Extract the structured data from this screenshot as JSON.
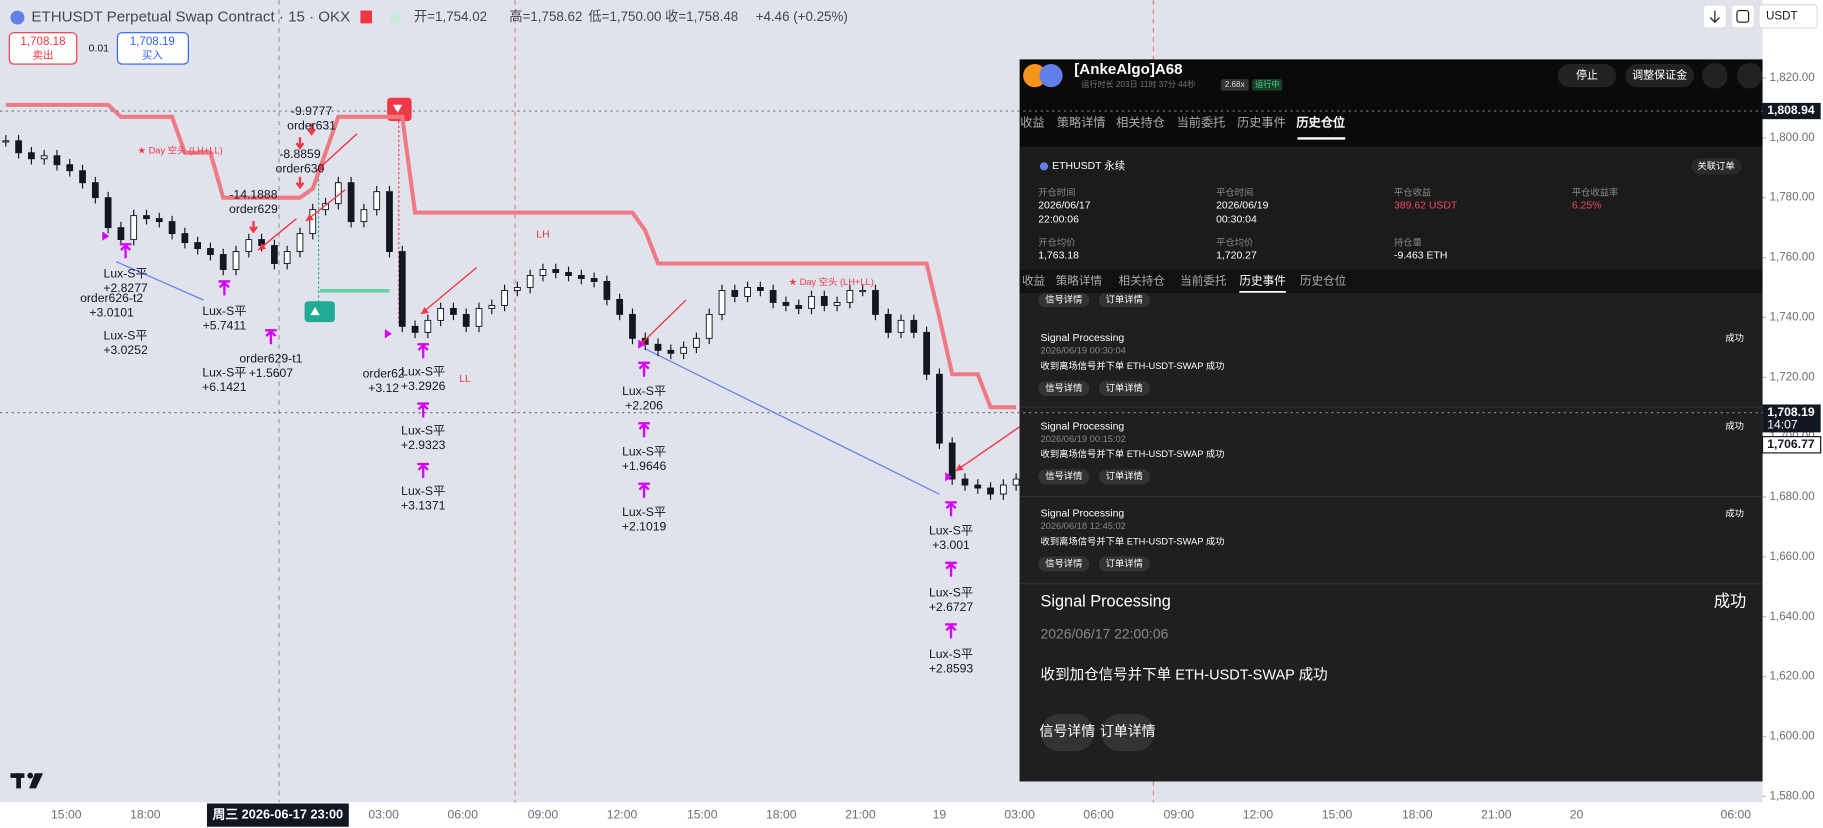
{
  "header": {
    "title": "ETHUSDT Perpetual Swap Contract · 15 · OKX",
    "ohlc": [
      "开=1,754.02",
      "高=1,758.62",
      "低=1,750.00",
      "收=1,758.48"
    ],
    "change": "+4.46 (+0.25%)",
    "currency": "USDT"
  },
  "order_box": {
    "sell_price": "1,708.18",
    "sell": "卖出",
    "qty": "0.01",
    "buy_price": "1,708.19",
    "buy": "买入"
  },
  "chart": {
    "ylim": [
      1578,
      1846
    ],
    "yticks": [
      {
        "value": 1820,
        "label": "1,820.00"
      },
      {
        "value": 1800,
        "label": "1,800.00"
      },
      {
        "value": 1780,
        "label": "1,780.00"
      },
      {
        "value": 1760,
        "label": "1,760.00"
      },
      {
        "value": 1740,
        "label": "1,740.00"
      },
      {
        "value": 1720,
        "label": "1,720.00"
      },
      {
        "value": 1700,
        "label": "1,700.00"
      },
      {
        "value": 1680,
        "label": "1,680.00"
      },
      {
        "value": 1660,
        "label": "1,660.00"
      },
      {
        "value": 1640,
        "label": "1,640.00"
      },
      {
        "value": 1620,
        "label": "1,620.00"
      },
      {
        "value": 1600,
        "label": "1,600.00"
      },
      {
        "value": 1580,
        "label": "1,580.00"
      }
    ],
    "closes": [
      1799,
      1795,
      1793,
      1794,
      1791,
      1789,
      1785,
      1780,
      1770,
      1766,
      1774,
      1773,
      1772,
      1768,
      1765,
      1763,
      1761,
      1756,
      1762,
      1766,
      1764,
      1758,
      1762,
      1768,
      1776,
      1778,
      1785,
      1772,
      1776,
      1782,
      1762,
      1737,
      1735,
      1739,
      1743,
      1741,
      1737,
      1743,
      1744,
      1749,
      1750,
      1754,
      1756,
      1755,
      1754,
      1753,
      1752,
      1746,
      1741,
      1733,
      1731,
      1729,
      1728,
      1730,
      1733,
      1741,
      1749,
      1747,
      1750,
      1749,
      1745,
      1744,
      1743,
      1747,
      1744,
      1745,
      1749,
      1749,
      1741,
      1735,
      1739,
      1735,
      1721,
      1698,
      1686,
      1684,
      1683,
      1681,
      1684,
      1686
    ],
    "stop_line": [
      1811,
      1811,
      1811,
      1811,
      1811,
      1811,
      1811,
      1811,
      1811,
      1807,
      1807,
      1807,
      1807,
      1807,
      1795,
      1795,
      1795,
      1780,
      1780,
      1780,
      1780,
      1780,
      1780,
      1780,
      1783,
      1795,
      1807,
      1807,
      1807,
      1807,
      1807,
      1807,
      1775,
      1775,
      1775,
      1775,
      1775,
      1775,
      1775,
      1775,
      1775,
      1775,
      1775,
      1775,
      1775,
      1775,
      1775,
      1775,
      1775,
      1775,
      1769,
      1758,
      1758,
      1758,
      1758,
      1758,
      1758,
      1758,
      1758,
      1758,
      1758,
      1758,
      1758,
      1758,
      1758,
      1758,
      1758,
      1758,
      1758,
      1758,
      1758,
      1758,
      1758,
      1740,
      1721,
      1721,
      1721,
      1710,
      1710,
      1710
    ],
    "price_labels": [
      {
        "value": 1808.94,
        "label": "1,808.94"
      },
      {
        "value": 1708.19,
        "label": "1,708.19"
      },
      {
        "value": 1706.77,
        "label": "1,706.77"
      }
    ],
    "countdown": "14:07",
    "crosshair_time": "周三 2026-06-17   23:00",
    "xticks": [
      "15:00",
      "18:00",
      "03:00",
      "06:00",
      "09:00",
      "12:00",
      "15:00",
      "18:00",
      "21:00",
      "19",
      "03:00",
      "06:00",
      "09:00",
      "12:00",
      "15:00",
      "18:00",
      "21:00",
      "20",
      "06:00"
    ],
    "annotations": [
      [
        "-9.9777",
        "order631"
      ],
      [
        "-8.8859",
        "order630"
      ],
      [
        "-14.1888",
        "order629"
      ],
      [
        "Lux-S平",
        "+2.8277"
      ],
      [
        "order626-t2",
        "+3.0101"
      ],
      [
        "Lux-S平",
        "+3.0252"
      ],
      [
        "Lux-S平",
        "+5.7411"
      ],
      [
        "order629-t1",
        "+1.5607"
      ],
      [
        "Lux-S平",
        "+6.1421"
      ],
      [
        "order62",
        "+3.12"
      ],
      [
        "Lux-S平",
        "+3.2926"
      ],
      [
        "Lux-S平",
        "+2.9323"
      ],
      [
        "Lux-S平",
        "+3.1371"
      ],
      [
        "Lux-S平",
        "+2.206"
      ],
      [
        "Lux-S平",
        "+1.9646"
      ],
      [
        "Lux-S平",
        "+2.1019"
      ],
      [
        "Lux-S平",
        "+3.001"
      ],
      [
        "Lux-S平",
        "+2.6727"
      ],
      [
        "Lux-S平",
        "+2.8593"
      ]
    ],
    "signals": [
      "LH",
      "LL",
      "★ Day 空头 (LH+LL)",
      "★ Day 空头 (LH+LL)"
    ]
  },
  "panel": {
    "title": "[AnkeAlgo]A68",
    "runtime": "运行时长 203日 11时 37分 44秒",
    "leverage": "2.68x",
    "status": "运行中",
    "buttons": [
      "停止",
      "调整保证金"
    ],
    "tabs": [
      "收益",
      "策略详情",
      "相关持仓",
      "当前委托",
      "历史事件",
      "历史仓位"
    ],
    "position": {
      "symbol": "ETHUSDT 永续",
      "link": "关联订单",
      "fields": [
        {
          "label": "开仓时间",
          "value": [
            "2026/06/17",
            "22:00:06"
          ]
        },
        {
          "label": "平仓时间",
          "value": [
            "2026/06/19",
            "00:30:04"
          ]
        },
        {
          "label": "平仓收益",
          "value": [
            "389.62 USDT"
          ]
        },
        {
          "label": "平仓收益率",
          "value": [
            "6.25%"
          ]
        },
        {
          "label": "开仓均价",
          "value": [
            "1,763.18"
          ]
        },
        {
          "label": "平仓均价",
          "value": [
            "1,720.27"
          ]
        },
        {
          "label": "持仓量",
          "value": [
            "-9.463 ETH"
          ]
        }
      ]
    },
    "subtabs": [
      "收益",
      "策略详情",
      "相关持仓",
      "当前委托",
      "历史事件",
      "历史仓位"
    ],
    "partial_buttons": [
      "信号详情",
      "订单详情"
    ],
    "events": [
      {
        "title": "Signal Processing",
        "status": "成功",
        "time": "2026/06/19 00:30:04",
        "message": "收到离场信号并下单 ETH-USDT-SWAP 成功",
        "buttons": [
          "信号详情",
          "订单详情"
        ]
      },
      {
        "title": "Signal Processing",
        "status": "成功",
        "time": "2026/06/19 00:15:02",
        "message": "收到离场信号并下单 ETH-USDT-SWAP 成功",
        "buttons": [
          "信号详情",
          "订单详情"
        ]
      },
      {
        "title": "Signal Processing",
        "status": "成功",
        "time": "2026/06/18 12:45:02",
        "message": "收到离场信号并下单 ETH-USDT-SWAP 成功",
        "buttons": [
          "信号详情",
          "订单详情"
        ]
      },
      {
        "title": "Signal Processing",
        "status": "成功",
        "time": "2026/06/17 22:00:06",
        "message": "收到加仓信号并下单 ETH-USDT-SWAP 成功",
        "buttons": [
          "信号详情",
          "订单详情"
        ]
      }
    ]
  }
}
